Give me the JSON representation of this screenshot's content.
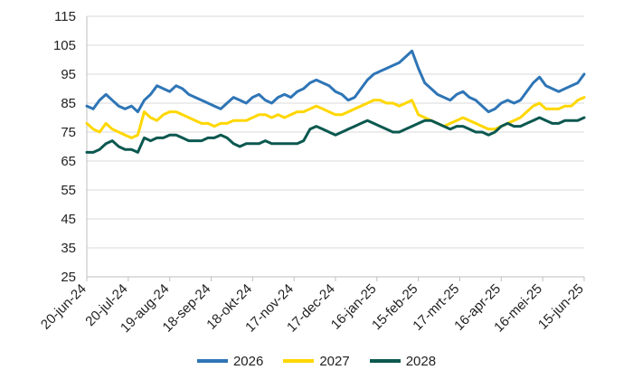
{
  "chart_data": {
    "type": "line",
    "title": "",
    "xlabel": "",
    "ylabel": "",
    "ylim": [
      25,
      115
    ],
    "yticks": [
      25,
      35,
      45,
      55,
      65,
      75,
      85,
      95,
      105,
      115
    ],
    "xticks": [
      "20-jun-24",
      "20-jul-24",
      "19-aug-24",
      "18-sep-24",
      "18-okt-24",
      "17-nov-24",
      "17-dec-24",
      "16-jan-25",
      "15-feb-25",
      "17-mrt-25",
      "16-apr-25",
      "16-mei-25",
      "15-jun-25"
    ],
    "grid": "horizontal",
    "legend_position": "bottom",
    "series": [
      {
        "name": "2026",
        "color": "#2e75b6",
        "values": [
          84,
          83,
          86,
          88,
          86,
          84,
          83,
          84,
          82,
          86,
          88,
          91,
          90,
          89,
          91,
          90,
          88,
          87,
          86,
          85,
          84,
          83,
          85,
          87,
          86,
          85,
          87,
          88,
          86,
          85,
          87,
          88,
          87,
          89,
          90,
          92,
          93,
          92,
          91,
          89,
          88,
          86,
          87,
          90,
          93,
          95,
          96,
          97,
          98,
          99,
          101,
          103,
          97,
          92,
          90,
          88,
          87,
          86,
          88,
          89,
          87,
          86,
          84,
          82,
          83,
          85,
          86,
          85,
          86,
          89,
          92,
          94,
          91,
          90,
          89,
          90,
          91,
          92,
          95
        ]
      },
      {
        "name": "2027",
        "color": "#ffd700",
        "values": [
          78,
          76,
          75,
          78,
          76,
          75,
          74,
          73,
          74,
          82,
          80,
          79,
          81,
          82,
          82,
          81,
          80,
          79,
          78,
          78,
          77,
          78,
          78,
          79,
          79,
          79,
          80,
          81,
          81,
          80,
          81,
          80,
          81,
          82,
          82,
          83,
          84,
          83,
          82,
          81,
          81,
          82,
          83,
          84,
          85,
          86,
          86,
          85,
          85,
          84,
          85,
          86,
          81,
          80,
          79,
          78,
          77,
          78,
          79,
          80,
          79,
          78,
          77,
          76,
          76,
          77,
          78,
          79,
          80,
          82,
          84,
          85,
          83,
          83,
          83,
          84,
          84,
          86,
          87
        ]
      },
      {
        "name": "2028",
        "color": "#0b5850",
        "values": [
          68,
          68,
          69,
          71,
          72,
          70,
          69,
          69,
          68,
          73,
          72,
          73,
          73,
          74,
          74,
          73,
          72,
          72,
          72,
          73,
          73,
          74,
          73,
          71,
          70,
          71,
          71,
          71,
          72,
          71,
          71,
          71,
          71,
          71,
          72,
          76,
          77,
          76,
          75,
          74,
          75,
          76,
          77,
          78,
          79,
          78,
          77,
          76,
          75,
          75,
          76,
          77,
          78,
          79,
          79,
          78,
          77,
          76,
          77,
          77,
          76,
          75,
          75,
          74,
          75,
          77,
          78,
          77,
          77,
          78,
          79,
          80,
          79,
          78,
          78,
          79,
          79,
          79,
          80
        ]
      }
    ]
  }
}
